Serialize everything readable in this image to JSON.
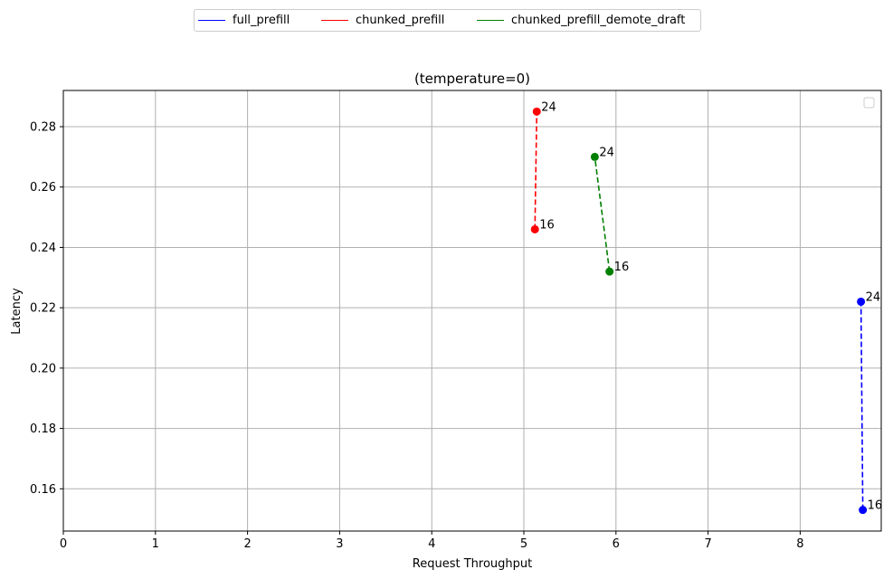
{
  "chart_data": {
    "type": "line",
    "title": "(temperature=0)",
    "xlabel": "Request Throughput",
    "ylabel": "Latency",
    "xlim": [
      0,
      8.88
    ],
    "ylim": [
      0.146,
      0.292
    ],
    "xticks": [
      0,
      1,
      2,
      3,
      4,
      5,
      6,
      7,
      8
    ],
    "yticks": [
      0.16,
      0.18,
      0.2,
      0.22,
      0.24,
      0.26,
      0.28
    ],
    "ytick_labels": [
      "0.16",
      "0.18",
      "0.20",
      "0.22",
      "0.24",
      "0.26",
      "0.28"
    ],
    "grid": true,
    "legend_position": "top-center-outside",
    "series": [
      {
        "name": "full_prefill",
        "color": "#0000ff",
        "points": [
          {
            "x": 8.68,
            "y": 0.153,
            "label": "16"
          },
          {
            "x": 8.66,
            "y": 0.222,
            "label": "24"
          }
        ]
      },
      {
        "name": "chunked_prefill",
        "color": "#ff0000",
        "points": [
          {
            "x": 5.12,
            "y": 0.246,
            "label": "16"
          },
          {
            "x": 5.14,
            "y": 0.285,
            "label": "24"
          }
        ]
      },
      {
        "name": "chunked_prefill_demote_draft",
        "color": "#008000",
        "points": [
          {
            "x": 5.93,
            "y": 0.232,
            "label": "16"
          },
          {
            "x": 5.77,
            "y": 0.27,
            "label": "24"
          }
        ]
      }
    ]
  }
}
